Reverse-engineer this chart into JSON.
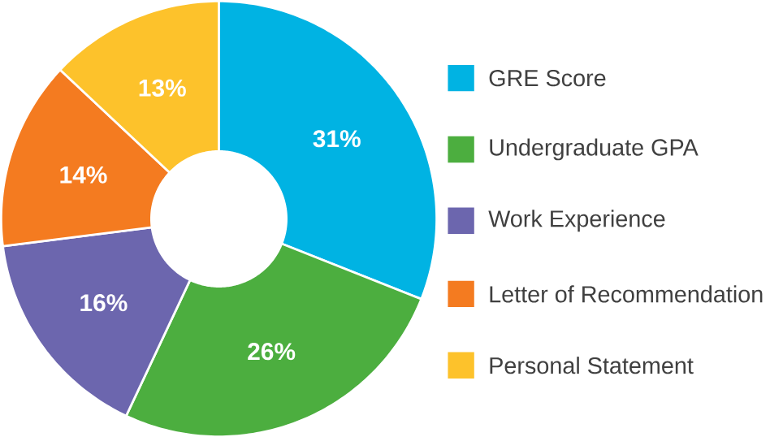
{
  "chart_data": {
    "type": "donut",
    "categories": [
      "GRE Score",
      "Undergraduate GPA",
      "Work Experience",
      "Letter of Recommendation",
      "Personal Statement"
    ],
    "values": [
      31,
      26,
      16,
      14,
      13
    ],
    "value_labels": [
      "31%",
      "26%",
      "16%",
      "14%",
      "13%"
    ],
    "colors": [
      "#00b3e3",
      "#4cae3f",
      "#6c66ae",
      "#f47b20",
      "#fdc22b"
    ],
    "legend": "right"
  }
}
